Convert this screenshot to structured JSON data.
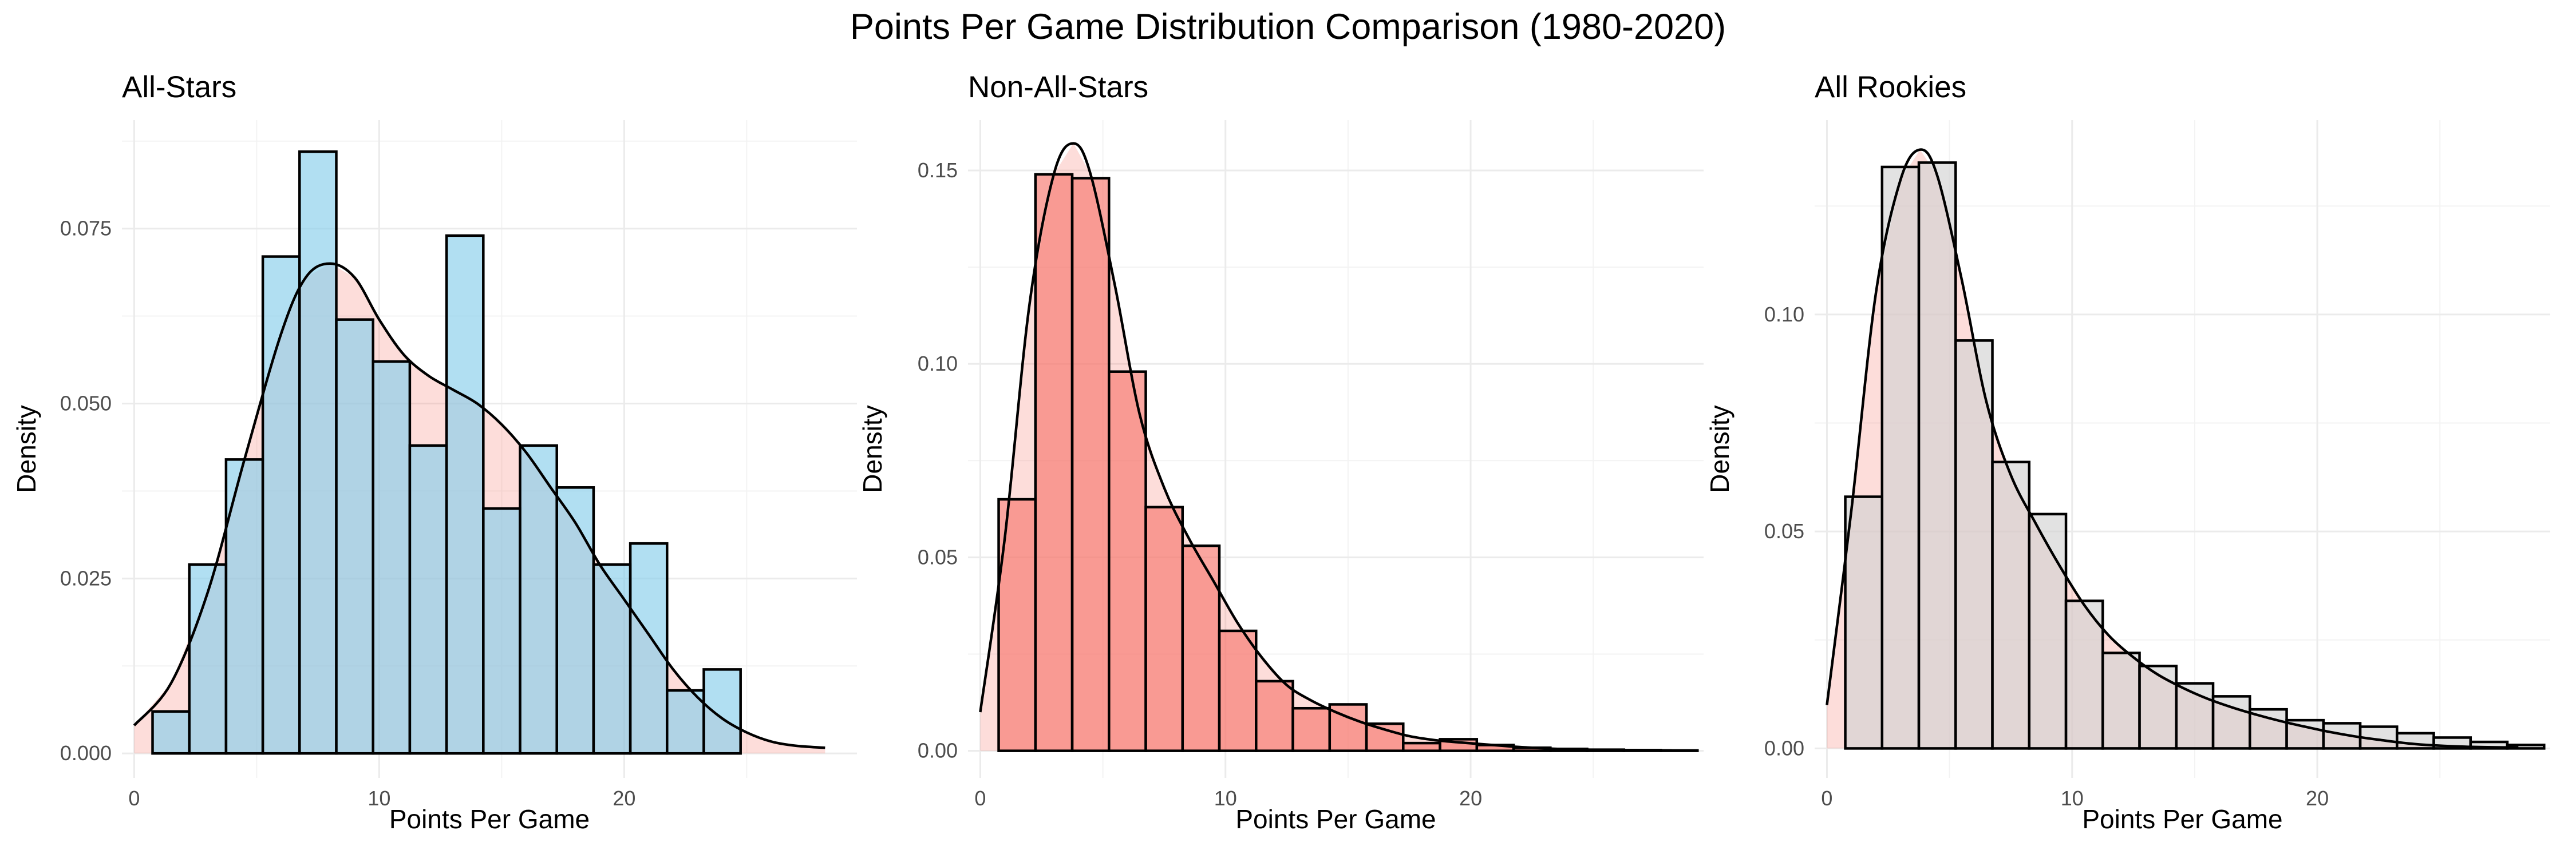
{
  "figure": {
    "title": "Points Per Game Distribution Comparison (1980-2020)"
  },
  "chart_data": [
    {
      "type": "bar",
      "title": "All-Stars",
      "xlabel": "Points Per Game",
      "ylabel": "Density",
      "xlim": [
        -0.5,
        29.5
      ],
      "ylim": [
        -0.0035,
        0.0905
      ],
      "xticks": [
        0,
        10,
        20
      ],
      "xtick_labels": [
        "0",
        "10",
        "20"
      ],
      "yticks": [
        0,
        0.025,
        0.05,
        0.075
      ],
      "ytick_labels": [
        "0.000",
        "0.025",
        "0.050",
        "0.075"
      ],
      "grid": true,
      "bin_width": 1.5,
      "bin_start": 0.75,
      "values": [
        0.006,
        0.027,
        0.042,
        0.071,
        0.086,
        0.062,
        0.056,
        0.044,
        0.074,
        0.035,
        0.044,
        0.038,
        0.027,
        0.03,
        0.009,
        0.012
      ],
      "bar_color": "#87CEEB",
      "bar_opacity": 0.65,
      "density": {
        "fill_color": "#F8766D",
        "fill_opacity": 0.25,
        "x": [
          0,
          1.5,
          3,
          4.5,
          6,
          7,
          8,
          9,
          10,
          11,
          12,
          13,
          14,
          15,
          16,
          17,
          18,
          19,
          20,
          21,
          22,
          23,
          24,
          25,
          26,
          27,
          28.2
        ],
        "y": [
          0.004,
          0.01,
          0.023,
          0.042,
          0.06,
          0.068,
          0.07,
          0.068,
          0.062,
          0.057,
          0.054,
          0.052,
          0.05,
          0.047,
          0.043,
          0.038,
          0.033,
          0.027,
          0.022,
          0.017,
          0.012,
          0.008,
          0.005,
          0.003,
          0.0017,
          0.0011,
          0.0008
        ]
      }
    },
    {
      "type": "bar",
      "title": "Non-All-Stars",
      "xlabel": "Points Per Game",
      "ylabel": "Density",
      "xlim": [
        -0.5,
        29.5
      ],
      "ylim": [
        -0.007,
        0.163
      ],
      "xticks": [
        0,
        10,
        20
      ],
      "xtick_labels": [
        "0",
        "10",
        "20"
      ],
      "yticks": [
        0,
        0.05,
        0.1,
        0.15
      ],
      "ytick_labels": [
        "0.00",
        "0.05",
        "0.10",
        "0.15"
      ],
      "grid": true,
      "bin_width": 1.5,
      "bin_start": 0.75,
      "values": [
        0.065,
        0.149,
        0.148,
        0.098,
        0.063,
        0.053,
        0.031,
        0.018,
        0.011,
        0.012,
        0.007,
        0.002,
        0.003,
        0.0015,
        0.0008,
        0.0005,
        0.0003,
        0.0002,
        0.0001
      ],
      "bar_color": "#F8766D",
      "bar_opacity": 0.65,
      "density": {
        "fill_color": "#F8766D",
        "fill_opacity": 0.25,
        "x": [
          0,
          1,
          2,
          3,
          3.8,
          4.5,
          5.5,
          6.5,
          7.5,
          8.5,
          9.5,
          10.5,
          11.5,
          12.5,
          13.5,
          14.5,
          15.5,
          16.5,
          17.5,
          18.5,
          19.5,
          20.5,
          21.5,
          22.5,
          24,
          26,
          28.2
        ],
        "y": [
          0.01,
          0.055,
          0.115,
          0.149,
          0.157,
          0.149,
          0.12,
          0.087,
          0.068,
          0.055,
          0.044,
          0.033,
          0.024,
          0.017,
          0.013,
          0.01,
          0.0075,
          0.0055,
          0.0038,
          0.0028,
          0.0022,
          0.0017,
          0.0012,
          0.0008,
          0.0004,
          0.0002,
          0.0001
        ]
      }
    },
    {
      "type": "bar",
      "title": "All Rookies",
      "xlabel": "Points Per Game",
      "ylabel": "Density",
      "xlim": [
        -0.5,
        29.5
      ],
      "ylim": [
        -0.0068,
        0.1448
      ],
      "xticks": [
        0,
        10,
        20
      ],
      "xtick_labels": [
        "0",
        "10",
        "20"
      ],
      "yticks": [
        0,
        0.05,
        0.1
      ],
      "ytick_labels": [
        "0.00",
        "0.05",
        "0.10"
      ],
      "grid": true,
      "bin_width": 1.5,
      "bin_start": 0.75,
      "values": [
        0.058,
        0.134,
        0.135,
        0.094,
        0.066,
        0.054,
        0.034,
        0.022,
        0.019,
        0.015,
        0.012,
        0.009,
        0.0065,
        0.0058,
        0.005,
        0.0035,
        0.0025,
        0.0015,
        0.0008
      ],
      "bar_color": "#D3D3D3",
      "bar_opacity": 0.65,
      "density": {
        "fill_color": "#F8766D",
        "fill_opacity": 0.25,
        "x": [
          0,
          1,
          2,
          3,
          3.8,
          4.5,
          5.5,
          6.5,
          7.5,
          8.5,
          9.5,
          10.5,
          11.5,
          12.5,
          13.5,
          14.5,
          15.5,
          16.5,
          17.5,
          18.5,
          19.5,
          20.5,
          21.5,
          22.5,
          24,
          26,
          28.2
        ],
        "y": [
          0.01,
          0.055,
          0.105,
          0.131,
          0.138,
          0.132,
          0.108,
          0.08,
          0.063,
          0.052,
          0.042,
          0.033,
          0.026,
          0.021,
          0.017,
          0.014,
          0.0115,
          0.0095,
          0.0078,
          0.0063,
          0.005,
          0.0038,
          0.0028,
          0.002,
          0.001,
          0.0004,
          0.0002
        ]
      }
    }
  ]
}
